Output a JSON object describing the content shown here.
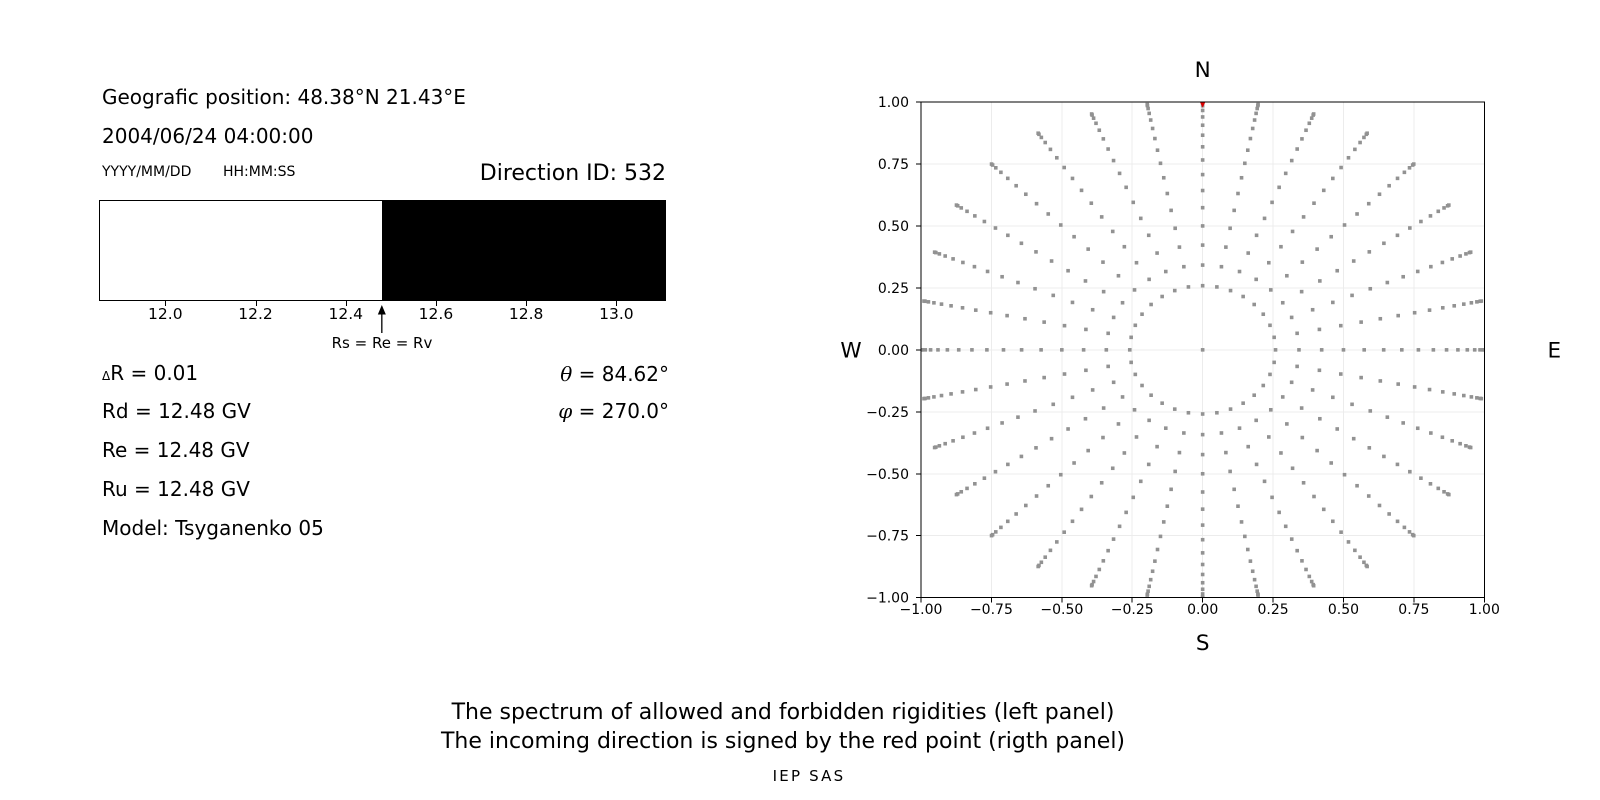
{
  "info": {
    "geo_position": "Geografic position: 48.38°N 21.43°E",
    "datetime": "2004/06/24 04:00:00",
    "date_format": "YYYY/MM/DD",
    "time_format": "HH:MM:SS",
    "direction_id": "Direction ID: 532",
    "delta_r": "ΔR = 0.01",
    "rd": "Rd = 12.48 GV",
    "re": "Re = 12.48 GV",
    "ru": "Ru = 12.48 GV",
    "model": "Model: Tsyganenko 05",
    "theta": "θ = 84.62°",
    "phi": "φ = 270.0°"
  },
  "caption": {
    "line1": "The spectrum of allowed and forbidden rigidities (left panel)",
    "line2": "The incoming direction is signed by the red point (rigth panel)",
    "credit": "IEP SAS"
  },
  "chart_data": [
    {
      "type": "span",
      "title": "rigidity spectrum (allowed = white, forbidden = black)",
      "x_range": [
        11.853,
        13.11
      ],
      "allowed_region": [
        11.853,
        12.48
      ],
      "forbidden_region": [
        12.48,
        13.11
      ],
      "x_ticks": [
        12.0,
        12.2,
        12.4,
        12.6,
        12.8,
        13.0
      ],
      "x_tick_labels": [
        "12.0",
        "12.2",
        "12.4",
        "12.6",
        "12.8",
        "13.0"
      ],
      "annotation": {
        "label": "Rs = Re = Rv",
        "x": 12.48
      },
      "forbidden_color": "#000000",
      "allowed_color": "#ffffff"
    },
    {
      "type": "scatter",
      "xlim": [
        -1,
        1
      ],
      "ylim": [
        -1,
        1
      ],
      "x_ticks": [
        -1.0,
        -0.75,
        -0.5,
        -0.25,
        0.0,
        0.25,
        0.5,
        0.75,
        1.0
      ],
      "y_ticks": [
        -1.0,
        -0.75,
        -0.5,
        -0.25,
        0.0,
        0.25,
        0.5,
        0.75,
        1.0
      ],
      "x_tick_labels": [
        "−1.00",
        "−0.75",
        "−0.50",
        "−0.25",
        "0.00",
        "0.25",
        "0.50",
        "0.75",
        "1.00"
      ],
      "y_tick_labels": [
        "−1.00",
        "−0.75",
        "−0.50",
        "−0.25",
        "0.00",
        "0.25",
        "0.50",
        "0.75",
        "1.00"
      ],
      "compass": {
        "top": "N",
        "bottom": "S",
        "left": "W",
        "right": "E"
      },
      "grid": true,
      "grid_color": "#ececec",
      "dot_color": "#929292",
      "dot_size_px": 3.6,
      "directions_grid": {
        "azimuth_count": 32,
        "azimuth_step_deg": 11.25,
        "zenith_deg": [
          15,
          20,
          25,
          30,
          35,
          40,
          45,
          50,
          55,
          60,
          65,
          70,
          75,
          80,
          85,
          90
        ],
        "projection": "r = sin(zenith)",
        "center_dot": true,
        "overshoot": 0.06,
        "overshoot_exponent": 6
      },
      "red_point": {
        "x": 0.0,
        "y": 1.0,
        "color": "#dd0000",
        "marker": "triangle-down",
        "meaning": "incoming direction"
      }
    }
  ]
}
